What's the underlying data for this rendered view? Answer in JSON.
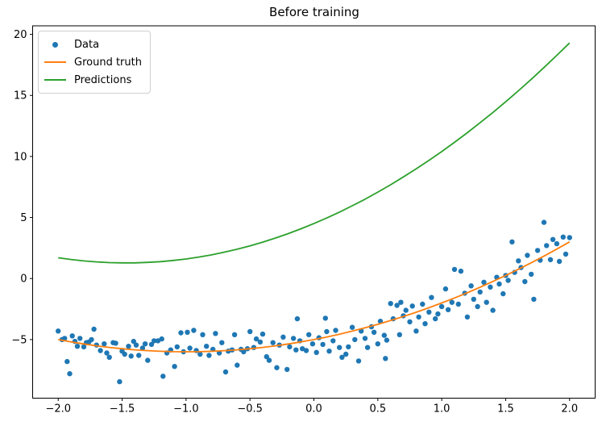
{
  "chart_data": {
    "type": "mixed",
    "title": "Before training",
    "background": "#ffffff",
    "grid": false,
    "xlim": [
      -2.2,
      2.2
    ],
    "ylim": [
      -9.8,
      20.7
    ],
    "x_ticks": {
      "values": [
        -2.0,
        -1.5,
        -1.0,
        -0.5,
        0.0,
        0.5,
        1.0,
        1.5,
        2.0
      ],
      "labels": [
        "−2.0",
        "−1.5",
        "−1.0",
        "−0.5",
        "0.0",
        "0.5",
        "1.0",
        "1.5",
        "2.0"
      ]
    },
    "y_ticks": {
      "values": [
        -5,
        0,
        5,
        10,
        15,
        20
      ],
      "labels": [
        "−5",
        "0",
        "5",
        "10",
        "15",
        "20"
      ]
    },
    "legend": {
      "position": "upper left",
      "entries": [
        {
          "label": "Data",
          "marker": "dot",
          "color": "#1f77b4"
        },
        {
          "label": "Ground truth",
          "marker": "line",
          "color": "#ff7f0e"
        },
        {
          "label": "Predictions",
          "marker": "line",
          "color": "#2ca02c"
        }
      ]
    },
    "series": [
      {
        "name": "Data",
        "type": "scatter",
        "color": "#1f77b4",
        "points": [
          [
            -2.0,
            -4.3
          ],
          [
            -1.97,
            -5.0
          ],
          [
            -1.95,
            -4.9
          ],
          [
            -1.93,
            -6.8
          ],
          [
            -1.91,
            -7.8
          ],
          [
            -1.89,
            -4.7
          ],
          [
            -1.87,
            -5.15
          ],
          [
            -1.85,
            -5.55
          ],
          [
            -1.83,
            -4.9
          ],
          [
            -1.8,
            -5.6
          ],
          [
            -1.78,
            -5.25
          ],
          [
            -1.76,
            -5.2
          ],
          [
            -1.74,
            -5.0
          ],
          [
            -1.72,
            -4.15
          ],
          [
            -1.7,
            -5.45
          ],
          [
            -1.67,
            -5.9
          ],
          [
            -1.64,
            -5.35
          ],
          [
            -1.62,
            -6.1
          ],
          [
            -1.6,
            -6.45
          ],
          [
            -1.57,
            -5.25
          ],
          [
            -1.55,
            -5.3
          ],
          [
            -1.52,
            -8.45
          ],
          [
            -1.5,
            -5.95
          ],
          [
            -1.48,
            -6.2
          ],
          [
            -1.45,
            -5.55
          ],
          [
            -1.43,
            -6.35
          ],
          [
            -1.41,
            -5.15
          ],
          [
            -1.39,
            -5.45
          ],
          [
            -1.37,
            -6.3
          ],
          [
            -1.34,
            -5.7
          ],
          [
            -1.32,
            -5.35
          ],
          [
            -1.3,
            -6.7
          ],
          [
            -1.27,
            -5.4
          ],
          [
            -1.25,
            -5.1
          ],
          [
            -1.22,
            -5.1
          ],
          [
            -1.19,
            -4.95
          ],
          [
            -1.18,
            -8.0
          ],
          [
            -1.15,
            -6.1
          ],
          [
            -1.12,
            -5.85
          ],
          [
            -1.09,
            -7.2
          ],
          [
            -1.07,
            -5.6
          ],
          [
            -1.04,
            -4.45
          ],
          [
            -1.02,
            -6.0
          ],
          [
            -0.99,
            -4.4
          ],
          [
            -0.97,
            -5.7
          ],
          [
            -0.94,
            -4.25
          ],
          [
            -0.92,
            -5.9
          ],
          [
            -0.89,
            -6.2
          ],
          [
            -0.87,
            -4.6
          ],
          [
            -0.84,
            -5.55
          ],
          [
            -0.82,
            -6.3
          ],
          [
            -0.79,
            -5.8
          ],
          [
            -0.77,
            -4.5
          ],
          [
            -0.74,
            -6.1
          ],
          [
            -0.72,
            -5.25
          ],
          [
            -0.69,
            -7.65
          ],
          [
            -0.67,
            -5.95
          ],
          [
            -0.64,
            -5.85
          ],
          [
            -0.62,
            -4.6
          ],
          [
            -0.6,
            -7.1
          ],
          [
            -0.57,
            -5.8
          ],
          [
            -0.55,
            -6.0
          ],
          [
            -0.52,
            -5.75
          ],
          [
            -0.5,
            -4.35
          ],
          [
            -0.47,
            -5.65
          ],
          [
            -0.45,
            -4.95
          ],
          [
            -0.42,
            -5.2
          ],
          [
            -0.4,
            -4.55
          ],
          [
            -0.37,
            -6.4
          ],
          [
            -0.35,
            -6.7
          ],
          [
            -0.32,
            -5.25
          ],
          [
            -0.29,
            -7.3
          ],
          [
            -0.27,
            -5.45
          ],
          [
            -0.24,
            -4.8
          ],
          [
            -0.21,
            -7.45
          ],
          [
            -0.19,
            -5.6
          ],
          [
            -0.16,
            -4.9
          ],
          [
            -0.14,
            -5.85
          ],
          [
            -0.13,
            -3.3
          ],
          [
            -0.11,
            -5.1
          ],
          [
            -0.09,
            -5.75
          ],
          [
            -0.06,
            -5.9
          ],
          [
            -0.04,
            -4.6
          ],
          [
            -0.01,
            -5.35
          ],
          [
            0.02,
            -6.05
          ],
          [
            0.04,
            -4.85
          ],
          [
            0.07,
            -5.4
          ],
          [
            0.09,
            -3.25
          ],
          [
            0.1,
            -4.35
          ],
          [
            0.12,
            -5.95
          ],
          [
            0.15,
            -5.1
          ],
          [
            0.17,
            -4.25
          ],
          [
            0.2,
            -5.65
          ],
          [
            0.22,
            -6.45
          ],
          [
            0.25,
            -6.2
          ],
          [
            0.27,
            -5.6
          ],
          [
            0.3,
            -4.0
          ],
          [
            0.32,
            -5.0
          ],
          [
            0.35,
            -6.75
          ],
          [
            0.37,
            -4.3
          ],
          [
            0.4,
            -4.9
          ],
          [
            0.42,
            -5.65
          ],
          [
            0.45,
            -3.95
          ],
          [
            0.47,
            -4.4
          ],
          [
            0.5,
            -5.35
          ],
          [
            0.52,
            -3.5
          ],
          [
            0.55,
            -4.65
          ],
          [
            0.56,
            -6.55
          ],
          [
            0.57,
            -5.05
          ],
          [
            0.6,
            -2.05
          ],
          [
            0.62,
            -3.3
          ],
          [
            0.65,
            -2.2
          ],
          [
            0.67,
            -4.6
          ],
          [
            0.68,
            -1.95
          ],
          [
            0.7,
            -3.05
          ],
          [
            0.72,
            -2.6
          ],
          [
            0.75,
            -3.55
          ],
          [
            0.77,
            -2.25
          ],
          [
            0.8,
            -4.3
          ],
          [
            0.82,
            -3.15
          ],
          [
            0.85,
            -2.1
          ],
          [
            0.87,
            -3.7
          ],
          [
            0.9,
            -2.75
          ],
          [
            0.92,
            -1.55
          ],
          [
            0.95,
            -3.3
          ],
          [
            0.97,
            -2.9
          ],
          [
            1.0,
            -2.3
          ],
          [
            1.03,
            -0.85
          ],
          [
            1.05,
            -2.55
          ],
          [
            1.08,
            -1.95
          ],
          [
            1.1,
            0.75
          ],
          [
            1.13,
            -2.1
          ],
          [
            1.15,
            0.6
          ],
          [
            1.18,
            -1.2
          ],
          [
            1.2,
            -3.15
          ],
          [
            1.23,
            -0.6
          ],
          [
            1.25,
            -1.7
          ],
          [
            1.28,
            -2.3
          ],
          [
            1.3,
            -1.1
          ],
          [
            1.33,
            -0.3
          ],
          [
            1.35,
            -1.95
          ],
          [
            1.38,
            -0.7
          ],
          [
            1.4,
            -2.6
          ],
          [
            1.43,
            0.1
          ],
          [
            1.45,
            -0.45
          ],
          [
            1.48,
            -1.25
          ],
          [
            1.5,
            0.25
          ],
          [
            1.52,
            -0.15
          ],
          [
            1.55,
            3.0
          ],
          [
            1.57,
            0.5
          ],
          [
            1.6,
            1.45
          ],
          [
            1.62,
            0.9
          ],
          [
            1.65,
            -0.25
          ],
          [
            1.67,
            1.9
          ],
          [
            1.7,
            0.35
          ],
          [
            1.72,
            -1.7
          ],
          [
            1.75,
            2.3
          ],
          [
            1.77,
            1.5
          ],
          [
            1.8,
            4.6
          ],
          [
            1.82,
            2.7
          ],
          [
            1.85,
            1.55
          ],
          [
            1.87,
            3.2
          ],
          [
            1.9,
            2.85
          ],
          [
            1.92,
            1.4
          ],
          [
            1.95,
            3.4
          ],
          [
            1.97,
            2.0
          ],
          [
            2.0,
            3.35
          ]
        ]
      },
      {
        "name": "Ground truth",
        "type": "line",
        "color": "#ff7f0e",
        "points": [
          [
            -2.0,
            -5.0
          ],
          [
            -1.9,
            -5.19
          ],
          [
            -1.8,
            -5.36
          ],
          [
            -1.7,
            -5.51
          ],
          [
            -1.6,
            -5.64
          ],
          [
            -1.5,
            -5.75
          ],
          [
            -1.4,
            -5.84
          ],
          [
            -1.3,
            -5.91
          ],
          [
            -1.2,
            -5.96
          ],
          [
            -1.1,
            -5.99
          ],
          [
            -1.0,
            -6.0
          ],
          [
            -0.9,
            -5.99
          ],
          [
            -0.8,
            -5.96
          ],
          [
            -0.7,
            -5.91
          ],
          [
            -0.6,
            -5.84
          ],
          [
            -0.5,
            -5.75
          ],
          [
            -0.4,
            -5.64
          ],
          [
            -0.3,
            -5.51
          ],
          [
            -0.2,
            -5.36
          ],
          [
            -0.1,
            -5.19
          ],
          [
            0.0,
            -5.0
          ],
          [
            0.1,
            -4.79
          ],
          [
            0.2,
            -4.56
          ],
          [
            0.3,
            -4.31
          ],
          [
            0.4,
            -4.04
          ],
          [
            0.5,
            -3.75
          ],
          [
            0.6,
            -3.44
          ],
          [
            0.7,
            -3.11
          ],
          [
            0.8,
            -2.76
          ],
          [
            0.9,
            -2.39
          ],
          [
            1.0,
            -2.0
          ],
          [
            1.1,
            -1.59
          ],
          [
            1.2,
            -1.16
          ],
          [
            1.3,
            -0.71
          ],
          [
            1.4,
            -0.24
          ],
          [
            1.5,
            0.25
          ],
          [
            1.6,
            0.76
          ],
          [
            1.7,
            1.29
          ],
          [
            1.8,
            1.84
          ],
          [
            1.9,
            2.41
          ],
          [
            2.0,
            3.0
          ]
        ]
      },
      {
        "name": "Predictions",
        "type": "line",
        "color": "#2ca02c",
        "points": [
          [
            -2.0,
            1.7
          ],
          [
            -1.9,
            1.56
          ],
          [
            -1.8,
            1.44
          ],
          [
            -1.7,
            1.36
          ],
          [
            -1.6,
            1.3
          ],
          [
            -1.5,
            1.28
          ],
          [
            -1.4,
            1.28
          ],
          [
            -1.3,
            1.32
          ],
          [
            -1.2,
            1.38
          ],
          [
            -1.1,
            1.48
          ],
          [
            -1.0,
            1.6
          ],
          [
            -0.9,
            1.76
          ],
          [
            -0.8,
            1.94
          ],
          [
            -0.7,
            2.16
          ],
          [
            -0.6,
            2.4
          ],
          [
            -0.5,
            2.68
          ],
          [
            -0.4,
            2.98
          ],
          [
            -0.3,
            3.32
          ],
          [
            -0.2,
            3.68
          ],
          [
            -0.1,
            4.08
          ],
          [
            0.0,
            4.5
          ],
          [
            0.1,
            4.96
          ],
          [
            0.2,
            5.44
          ],
          [
            0.3,
            5.96
          ],
          [
            0.4,
            6.5
          ],
          [
            0.5,
            7.08
          ],
          [
            0.6,
            7.68
          ],
          [
            0.7,
            8.32
          ],
          [
            0.8,
            8.98
          ],
          [
            0.9,
            9.68
          ],
          [
            1.0,
            10.4
          ],
          [
            1.1,
            11.16
          ],
          [
            1.2,
            11.94
          ],
          [
            1.3,
            12.76
          ],
          [
            1.4,
            13.6
          ],
          [
            1.5,
            14.48
          ],
          [
            1.6,
            15.38
          ],
          [
            1.7,
            16.32
          ],
          [
            1.8,
            17.28
          ],
          [
            1.9,
            18.28
          ],
          [
            2.0,
            19.3
          ]
        ]
      }
    ]
  }
}
